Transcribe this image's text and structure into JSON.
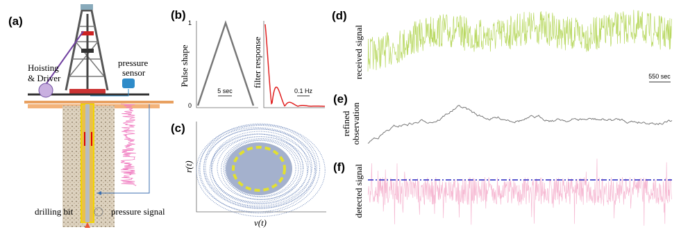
{
  "panel_a": {
    "label": "(a)",
    "hoisting": [
      "Hoisting",
      "& Driver"
    ],
    "sensor": [
      "pressure",
      "sensor"
    ],
    "bit": "drilling bit",
    "signal": "pressure signal"
  },
  "panel_b": {
    "label": "(b)",
    "pulse_axis": "Pulse shape",
    "tick_top": "1",
    "tick_bottom": "0",
    "pulse_scale": "5 sec",
    "filter_axis": "filter response",
    "filter_scale": "0.1 Hz"
  },
  "panel_c": {
    "label": "(c)",
    "y_axis": "r(t)",
    "x_axis": "v(t)"
  },
  "panel_d": {
    "label": "(d)",
    "y_axis": "received signal",
    "scale": "550 sec"
  },
  "panel_e": {
    "label": "(e)",
    "y_axis": [
      "refined",
      "observation"
    ]
  },
  "panel_f": {
    "label": "(f)",
    "y_axis": "detected signal"
  }
}
